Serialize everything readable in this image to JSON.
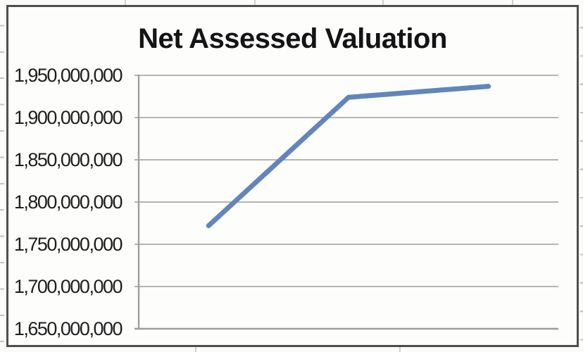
{
  "chart_data": {
    "type": "line",
    "title": "Net Assessed Valuation",
    "categories": [
      "",
      "",
      ""
    ],
    "series": [
      {
        "name": "Net Assessed Valuation",
        "values": [
          1772000000,
          1924000000,
          1937000000
        ]
      }
    ],
    "xlabel": "",
    "ylabel": "",
    "ylim": [
      1650000000,
      1950000000
    ],
    "y_tick_step": 50000000,
    "y_tick_labels": [
      "1,950,000,000",
      "1,900,000,000",
      "1,850,000,000",
      "1,800,000,000",
      "1,750,000,000",
      "1,700,000,000",
      "1,650,000,000"
    ],
    "grid": true,
    "legend_position": "none",
    "line_color": "#6285bc",
    "gridline_color": "#b5b5b3",
    "axis_color": "#9e9e9c",
    "title_color": "#141414"
  }
}
